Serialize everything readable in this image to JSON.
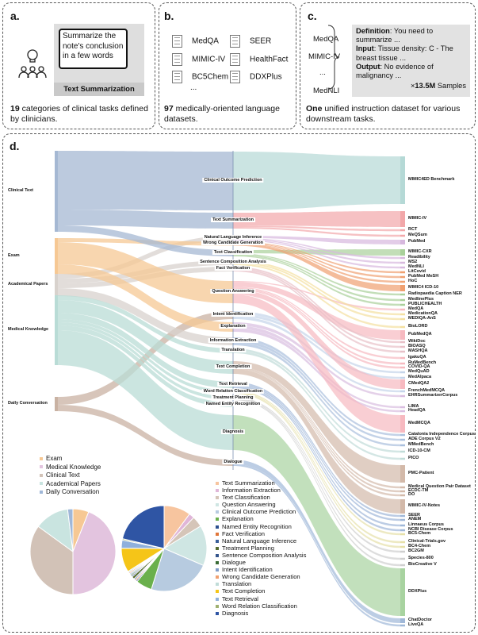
{
  "panel_a": {
    "label": "a.",
    "bubble": "Summarize the note's conclusion in a few words",
    "task": "Text Summarization",
    "caption_num": "19",
    "caption": " categories of clinical tasks defined by clinicians."
  },
  "panel_b": {
    "label": "b.",
    "datasets": [
      "MedQA",
      "SEER",
      "MIMIC-IV",
      "HealthFact",
      "BC5Chem",
      "DDXPlus"
    ],
    "ellipsis": "...",
    "caption_num": "97",
    "caption": " medically-oriented language datasets."
  },
  "panel_c": {
    "label": "c.",
    "sources": [
      "MedQA",
      "MIMIC-IV",
      "...",
      "MedNLI"
    ],
    "def_k": "Definition",
    "def_v": ": You need to summarize ...",
    "in_k": "Input",
    "in_v": ": Tissue density: C - The breast tissue ...",
    "out_k": "Output",
    "out_v": ": No evidence of malignancy ...",
    "samples_pre": "×",
    "samples_num": "13.5M",
    "samples_post": " Samples",
    "caption_num": "One",
    "caption": " unified instruction dataset for various downstream tasks."
  },
  "panel_d": {
    "label": "d.",
    "sources": [
      {
        "name": "Clinical Text",
        "color": "#a5b8d3"
      },
      {
        "name": "Exam",
        "color": "#f6c894"
      },
      {
        "name": "Academical Papers",
        "color": "#d8d2cd"
      },
      {
        "name": "Medical Knowledge",
        "color": "#b9dcd6"
      },
      {
        "name": "Daily Conversation",
        "color": "#c9b2a3"
      }
    ],
    "tasks": [
      {
        "name": "Clinical Outcome Prediction",
        "color": "#b5d9d6"
      },
      {
        "name": "Text Summarization",
        "color": "#f2a7a9"
      },
      {
        "name": "Natural Language Inference",
        "color": "#d7b8de"
      },
      {
        "name": "Wrong Candidate Generation",
        "color": "#f0a070"
      },
      {
        "name": "Text Classification",
        "color": "#a9d09a"
      },
      {
        "name": "Sentence Composition Analysis",
        "color": "#f4e0a0"
      },
      {
        "name": "Fact Verification",
        "color": "#e8c0c8"
      },
      {
        "name": "Question Answering",
        "color": "#f7b9c0"
      },
      {
        "name": "Intent Identification",
        "color": "#c4d4ea"
      },
      {
        "name": "Explanation",
        "color": "#d9bde0"
      },
      {
        "name": "Information Extraction",
        "color": "#a9bfdd"
      },
      {
        "name": "Translation",
        "color": "#c0dcd8"
      },
      {
        "name": "Text Completion",
        "color": "#d3b9a9"
      },
      {
        "name": "Text Retrieval",
        "color": "#9fb7d8"
      },
      {
        "name": "Word Relation Classification",
        "color": "#e6e0a8"
      },
      {
        "name": "Treatment Planning",
        "color": "#cfcfcf"
      },
      {
        "name": "Named Entity Recognition",
        "color": "#d8c9e6"
      },
      {
        "name": "Diagnosis",
        "color": "#a8d3a0"
      },
      {
        "name": "Dialogue",
        "color": "#a0b8d8"
      }
    ],
    "datasets": [
      "MIMIC4ED Benchmark",
      "MIMIC-IV",
      "RCT",
      "MeQSum",
      "PubMed",
      "MIMIC-CXR",
      "Readibility",
      "MS2",
      "MedNLI",
      "LitCovid",
      "PubMed MeSH",
      "HoC",
      "MIMIC4 ICD-10",
      "Radiopaedia Caption NER",
      "MedlinePlus",
      "PUBLICHEALTH",
      "MedQA",
      "MedicationQA",
      "MEDIQA-AnS",
      "BioLORD",
      "PubMedQA",
      "WikiDoc",
      "BIOASQ",
      "MASHQA",
      "IgakuQA",
      "RuMedBench",
      "COVID-QA",
      "MedQuAD",
      "MedAlpaca",
      "CMedQA2",
      "FrenchMedMCQA",
      "EHRSummarizerCorpus",
      "LIMA",
      "HeadQA",
      "MedMCQA",
      "Catalonia Independence Corpus",
      "ADE Corpus V2",
      "MMedBench",
      "ICD-10-CM",
      "PICO",
      "PMC-Patient",
      "Medical Question Pair Dataset",
      "ECDC-TM",
      "DO",
      "MIMIC-IV-Notes",
      "SEER",
      "ANEM",
      "Linnaeus Corpus",
      "NCBI Disease Corpus",
      "BC5-Chem",
      "Clinical-Trials.gov",
      "BC4-Chem",
      "BC2GM",
      "Species-800",
      "BioCreative V",
      "DDXPlus",
      "ChatDoctor",
      "LiveQA"
    ],
    "source_legend": [
      {
        "name": "Exam",
        "color": "#f6c894",
        "share": 6
      },
      {
        "name": "Medical Knowledge",
        "color": "#e3c4df",
        "share": 44
      },
      {
        "name": "Clinical Text",
        "color": "#d2c2b7",
        "share": 35
      },
      {
        "name": "Academical Papers",
        "color": "#c9e4e0",
        "share": 13
      },
      {
        "name": "Daily Conversation",
        "color": "#9fb7d8",
        "share": 2
      }
    ],
    "task_legend": [
      {
        "name": "Text Summarization",
        "color": "#f7c59f",
        "share": 10
      },
      {
        "name": "Information Extraction",
        "color": "#e0b6d8",
        "share": 2
      },
      {
        "name": "Text Classification",
        "color": "#d5c5b8",
        "share": 4
      },
      {
        "name": "Question Answering",
        "color": "#cfe6e3",
        "share": 15
      },
      {
        "name": "Clinical Outcome Prediction",
        "color": "#b7cbe0",
        "share": 23
      },
      {
        "name": "Explanation",
        "color": "#6ab04c",
        "share": 6
      },
      {
        "name": "Named Entity Recognition",
        "color": "#2c4f8f",
        "share": 0.5
      },
      {
        "name": "Fact Verification",
        "color": "#e0763a",
        "share": 0.5
      },
      {
        "name": "Natural Language Inference",
        "color": "#3a5f9a",
        "share": 0.5
      },
      {
        "name": "Treatment Planning",
        "color": "#556b2f",
        "share": 1
      },
      {
        "name": "Sentence Composition Analysis",
        "color": "#34548c",
        "share": 0.5
      },
      {
        "name": "Dialogue",
        "color": "#3a6b35",
        "share": 0.5
      },
      {
        "name": "Intent Identification",
        "color": "#7f9cc9",
        "share": 0.5
      },
      {
        "name": "Wrong Candidate Generation",
        "color": "#f0a070",
        "share": 0.5
      },
      {
        "name": "Translation",
        "color": "#c0dcd8",
        "share": 0.5
      },
      {
        "name": "Text Completion",
        "color": "#f5c518",
        "share": 9
      },
      {
        "name": "Text Retrieval",
        "color": "#8fb0dc",
        "share": 3
      },
      {
        "name": "Word Relation Classification",
        "color": "#9fb070",
        "share": 0.5
      },
      {
        "name": "Diagnosis",
        "color": "#2f55a4",
        "share": 21
      }
    ]
  }
}
